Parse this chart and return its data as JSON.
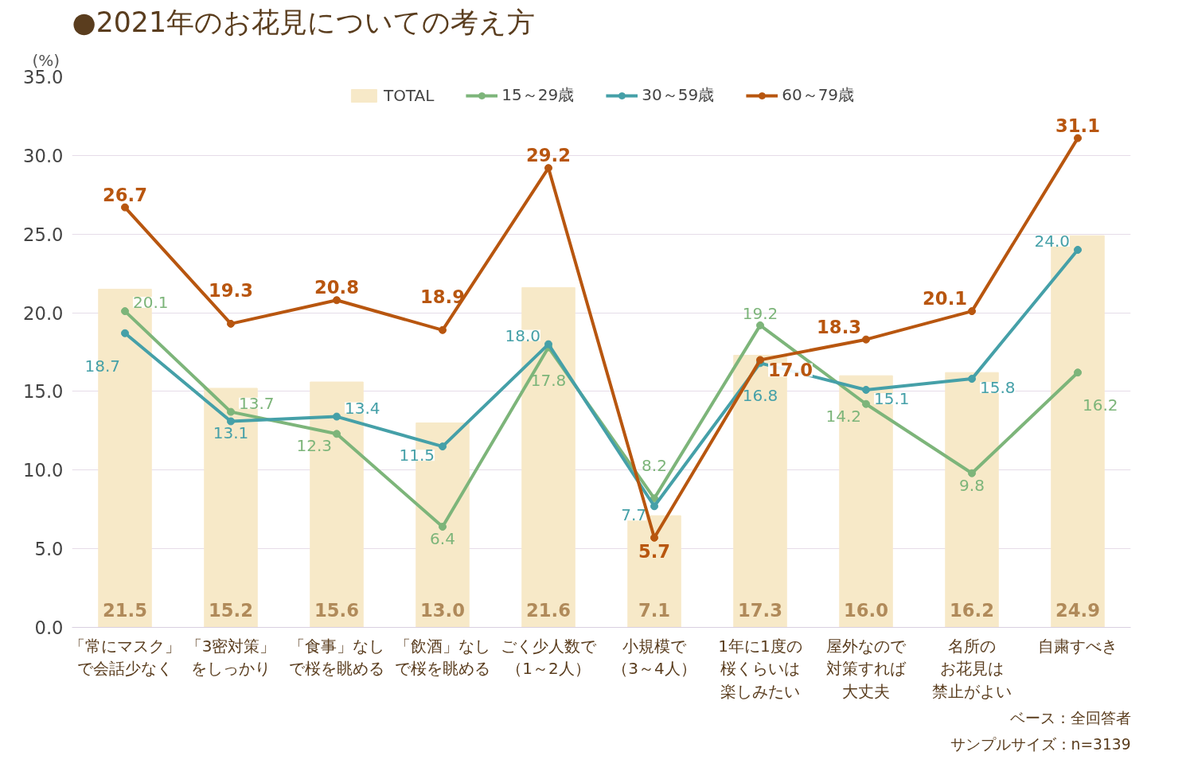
{
  "chart_data": {
    "type": "bar",
    "title": "●2021年のお花見についての考え方",
    "ylabel": "(%)",
    "categories": [
      "「常にマスク」で会話少なく",
      "「3密対策」をしっかり",
      "「食事」なしで桜を眺める",
      "「飲酒」なしで桜を眺める",
      "ごく少人数で（1～2人）",
      "小規模で（3～4人）",
      "1年に1度の桜くらいは楽しみたい",
      "屋外なので対策すれば大丈夫",
      "名所のお花見は禁止がよい",
      "自粛すべき"
    ],
    "series": [
      {
        "name": "TOTAL",
        "color": "#f7e9c8",
        "values": [
          21.5,
          15.2,
          15.6,
          13.0,
          21.6,
          7.1,
          17.3,
          16.0,
          16.2,
          24.9
        ],
        "value_labels": [
          "21.5",
          "15.2",
          "15.6",
          "13.0",
          "21.6",
          "7.1",
          "17.3",
          "16.0",
          "16.2",
          "24.9"
        ]
      },
      {
        "name": "15～29歳",
        "type": "line",
        "color": "#7db57a",
        "values": [
          20.1,
          13.7,
          12.3,
          6.4,
          17.8,
          8.2,
          19.2,
          14.2,
          9.8,
          16.2
        ],
        "value_labels": [
          "20.1",
          "13.7",
          "12.3",
          "6.4",
          "17.8",
          "8.2",
          "19.2",
          "14.2",
          "9.8",
          "16.2"
        ]
      },
      {
        "name": "30～59歳",
        "type": "line",
        "color": "#45a0a8",
        "values": [
          18.7,
          13.1,
          13.4,
          11.5,
          18.0,
          7.7,
          16.8,
          15.1,
          15.8,
          24.0
        ],
        "value_labels": [
          "18.7",
          "13.1",
          "13.4",
          "11.5",
          "18.0",
          "7.7",
          "16.8",
          "15.1",
          "15.8",
          "24.0"
        ]
      },
      {
        "name": "60～79歳",
        "type": "line",
        "color": "#b8560f",
        "values": [
          26.7,
          19.3,
          20.8,
          18.9,
          29.2,
          5.7,
          17.0,
          18.3,
          20.1,
          31.1
        ],
        "value_labels": [
          "26.7",
          "19.3",
          "20.8",
          "18.9",
          "29.2",
          "5.7",
          "17.0",
          "18.3",
          "20.1",
          "31.1"
        ]
      }
    ],
    "ylim": [
      0,
      35
    ],
    "yticks": [
      {
        "value": 0,
        "label": "0.0"
      },
      {
        "value": 5,
        "label": "5.0"
      },
      {
        "value": 10,
        "label": "10.0"
      },
      {
        "value": 15,
        "label": "15.0"
      },
      {
        "value": 20,
        "label": "20.0"
      },
      {
        "value": 25,
        "label": "25.0"
      },
      {
        "value": 30,
        "label": "30.0"
      },
      {
        "value": 35,
        "label": "35.0"
      }
    ],
    "grid": "y",
    "legend": "top",
    "marker": "circle",
    "line_style": "solid",
    "annotations": [
      "ベース：全回答者",
      "サンプルサイズ：n=3139"
    ]
  }
}
